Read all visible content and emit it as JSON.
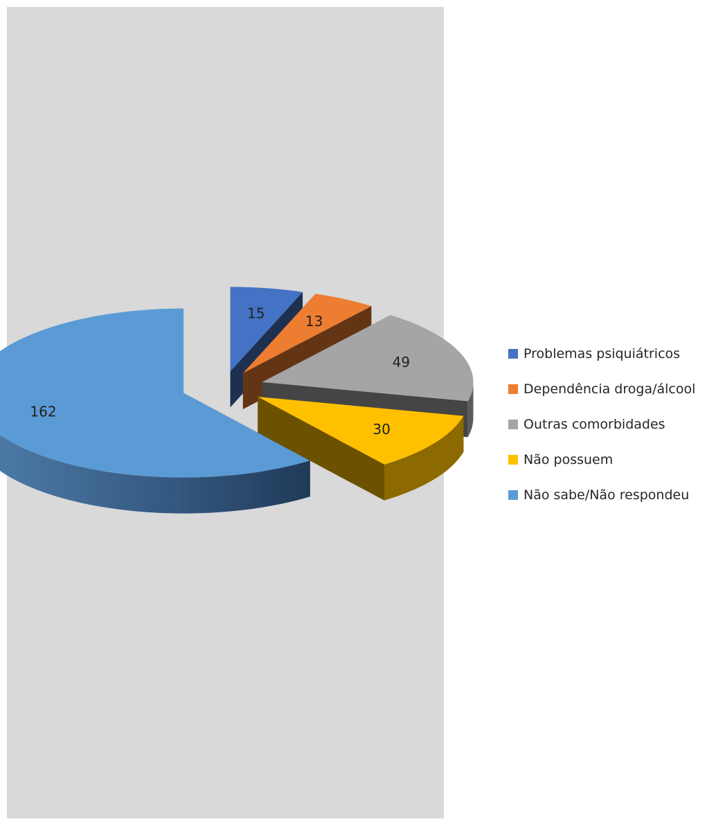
{
  "chart_data": {
    "type": "pie",
    "title": "",
    "style": "3d-exploded",
    "legend_position": "right",
    "background_panel_color": "#d9d9d9",
    "categories": [
      "Problemas psiquiátricos",
      "Dependência droga/álcool",
      "Outras comorbidades",
      "Não possuem",
      "Não sabe/Não respondeu"
    ],
    "values": [
      15,
      13,
      49,
      30,
      162
    ],
    "colors": [
      "#4472c4",
      "#ed7d31",
      "#a5a5a5",
      "#ffc000",
      "#5b9bd5"
    ]
  }
}
